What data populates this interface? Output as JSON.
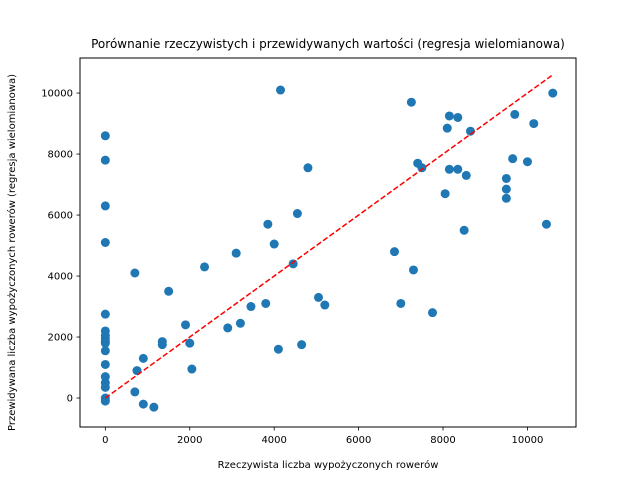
{
  "chart_data": {
    "type": "scatter",
    "title": "Porównanie rzeczywistych i przewidywanych wartości (regresja wielomianowa)",
    "xlabel": "Rzeczywista liczba wypożyczonych rowerów",
    "ylabel": "Przewidywana liczba wypożyczonych rowerów (regresja wielomianowa)",
    "xlim": [
      -600,
      11150
    ],
    "ylim": [
      -950,
      11150
    ],
    "xticks": [
      0,
      2000,
      4000,
      6000,
      8000,
      10000
    ],
    "yticks": [
      0,
      2000,
      4000,
      6000,
      8000,
      10000
    ],
    "grid": false,
    "points": [
      {
        "x": 0,
        "y": 8600
      },
      {
        "x": 0,
        "y": 7800
      },
      {
        "x": 0,
        "y": 6300
      },
      {
        "x": 0,
        "y": 5100
      },
      {
        "x": 0,
        "y": 2750
      },
      {
        "x": 0,
        "y": 2200
      },
      {
        "x": 0,
        "y": 2050
      },
      {
        "x": 0,
        "y": 1950
      },
      {
        "x": 0,
        "y": 1850
      },
      {
        "x": 0,
        "y": 1800
      },
      {
        "x": 0,
        "y": 1550
      },
      {
        "x": 0,
        "y": 1100
      },
      {
        "x": 0,
        "y": 700
      },
      {
        "x": 0,
        "y": 500
      },
      {
        "x": 0,
        "y": 350
      },
      {
        "x": 0,
        "y": 0
      },
      {
        "x": 0,
        "y": -100
      },
      {
        "x": 700,
        "y": 4100
      },
      {
        "x": 700,
        "y": 200
      },
      {
        "x": 750,
        "y": 900
      },
      {
        "x": 900,
        "y": 1300
      },
      {
        "x": 900,
        "y": -200
      },
      {
        "x": 1150,
        "y": -300
      },
      {
        "x": 1350,
        "y": 1850
      },
      {
        "x": 1350,
        "y": 1750
      },
      {
        "x": 1500,
        "y": 3500
      },
      {
        "x": 1900,
        "y": 2400
      },
      {
        "x": 2000,
        "y": 1800
      },
      {
        "x": 2050,
        "y": 950
      },
      {
        "x": 2350,
        "y": 4300
      },
      {
        "x": 2900,
        "y": 2300
      },
      {
        "x": 3100,
        "y": 4750
      },
      {
        "x": 3200,
        "y": 2450
      },
      {
        "x": 3450,
        "y": 3000
      },
      {
        "x": 3800,
        "y": 3100
      },
      {
        "x": 3850,
        "y": 5700
      },
      {
        "x": 4000,
        "y": 5050
      },
      {
        "x": 4100,
        "y": 1600
      },
      {
        "x": 4150,
        "y": 10100
      },
      {
        "x": 4450,
        "y": 4400
      },
      {
        "x": 4550,
        "y": 6050
      },
      {
        "x": 4650,
        "y": 1750
      },
      {
        "x": 4800,
        "y": 7550
      },
      {
        "x": 5050,
        "y": 3300
      },
      {
        "x": 5200,
        "y": 3050
      },
      {
        "x": 6850,
        "y": 4800
      },
      {
        "x": 7000,
        "y": 3100
      },
      {
        "x": 7250,
        "y": 9700
      },
      {
        "x": 7300,
        "y": 4200
      },
      {
        "x": 7400,
        "y": 7700
      },
      {
        "x": 7500,
        "y": 7550
      },
      {
        "x": 7750,
        "y": 2800
      },
      {
        "x": 8050,
        "y": 6700
      },
      {
        "x": 8100,
        "y": 8850
      },
      {
        "x": 8150,
        "y": 9250
      },
      {
        "x": 8150,
        "y": 7500
      },
      {
        "x": 8350,
        "y": 9200
      },
      {
        "x": 8350,
        "y": 7500
      },
      {
        "x": 8500,
        "y": 5500
      },
      {
        "x": 8550,
        "y": 7300
      },
      {
        "x": 8650,
        "y": 8750
      },
      {
        "x": 9500,
        "y": 7200
      },
      {
        "x": 9500,
        "y": 6850
      },
      {
        "x": 9500,
        "y": 6550
      },
      {
        "x": 9650,
        "y": 7850
      },
      {
        "x": 9700,
        "y": 9300
      },
      {
        "x": 10000,
        "y": 7750
      },
      {
        "x": 10150,
        "y": 9000
      },
      {
        "x": 10450,
        "y": 5700
      },
      {
        "x": 10600,
        "y": 10000
      }
    ],
    "reference_line": {
      "x": [
        0,
        10600
      ],
      "y": [
        0,
        10600
      ],
      "style": "dashed",
      "color": "#ff0000"
    },
    "marker_color": "#1f77b4"
  }
}
